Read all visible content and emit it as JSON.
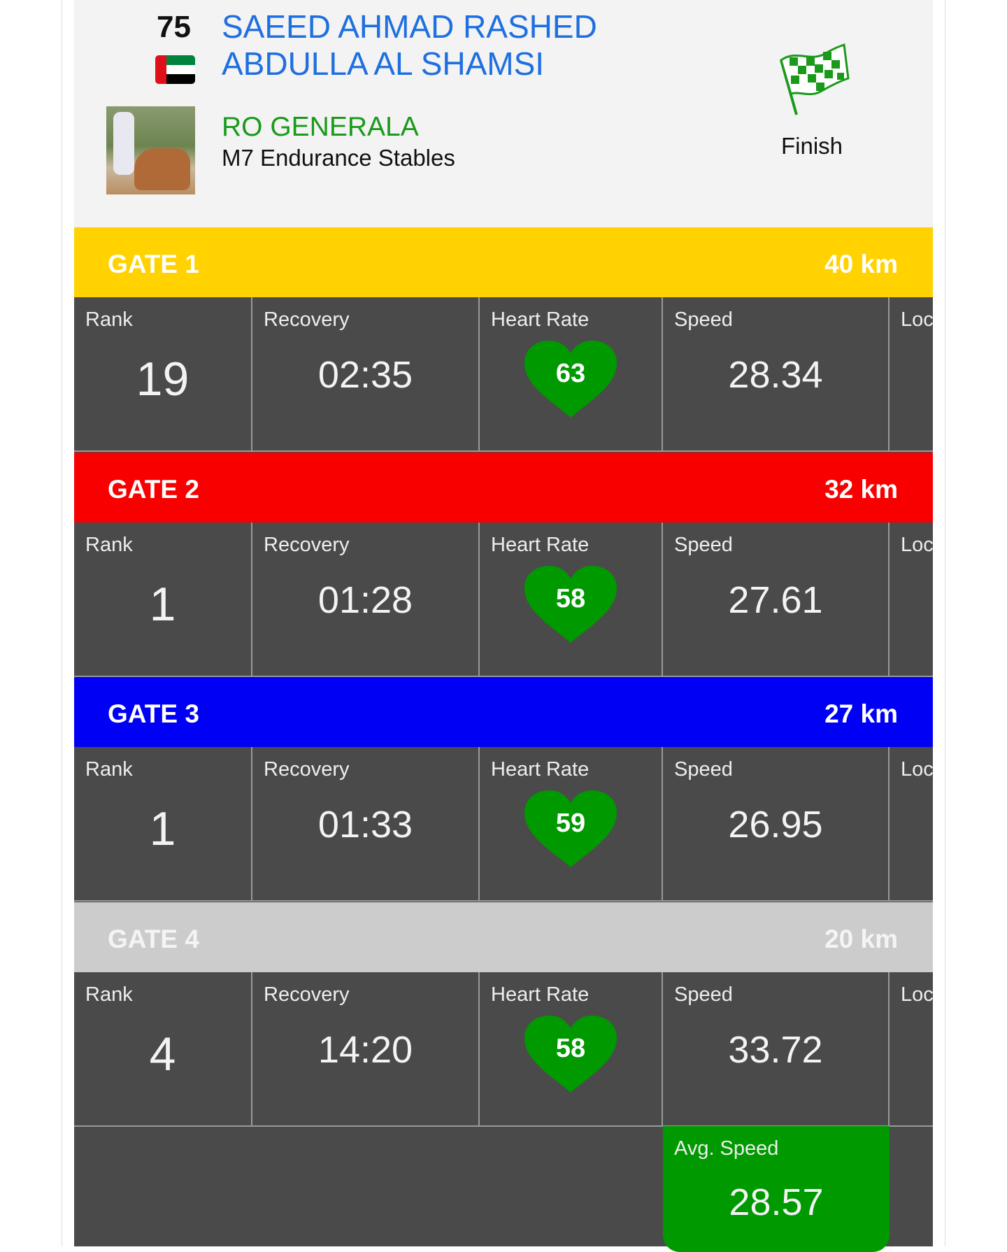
{
  "rider": {
    "number": "75",
    "name_line1": "SAEED AHMAD RASHED",
    "name_line2": "ABDULLA AL SHAMSI",
    "country_flag": "UAE"
  },
  "horse": {
    "name": "RO GENERALA",
    "stable": "M7 Endurance Stables"
  },
  "status": {
    "icon": "checkered-flag-icon",
    "label": "Finish"
  },
  "colors": {
    "gate1": "#ffd200",
    "gate2": "#f80000",
    "gate3": "#0000f5",
    "gate4": "#cccccc",
    "heart": "#009900",
    "panel": "#4a4a4a"
  },
  "columns": {
    "rank": "Rank",
    "recovery": "Recovery",
    "heart_rate": "Heart Rate",
    "speed": "Speed",
    "location": "Loc"
  },
  "gates": [
    {
      "title": "GATE 1",
      "distance": "40 km",
      "rank": "19",
      "recovery": "02:35",
      "heart_rate": "63",
      "speed": "28.34"
    },
    {
      "title": "GATE 2",
      "distance": "32 km",
      "rank": "1",
      "recovery": "01:28",
      "heart_rate": "58",
      "speed": "27.61"
    },
    {
      "title": "GATE 3",
      "distance": "27 km",
      "rank": "1",
      "recovery": "01:33",
      "heart_rate": "59",
      "speed": "26.95"
    },
    {
      "title": "GATE 4",
      "distance": "20 km",
      "rank": "4",
      "recovery": "14:20",
      "heart_rate": "58",
      "speed": "33.72"
    }
  ],
  "summary": {
    "avg_speed_label": "Avg. Speed",
    "avg_speed": "28.57"
  }
}
